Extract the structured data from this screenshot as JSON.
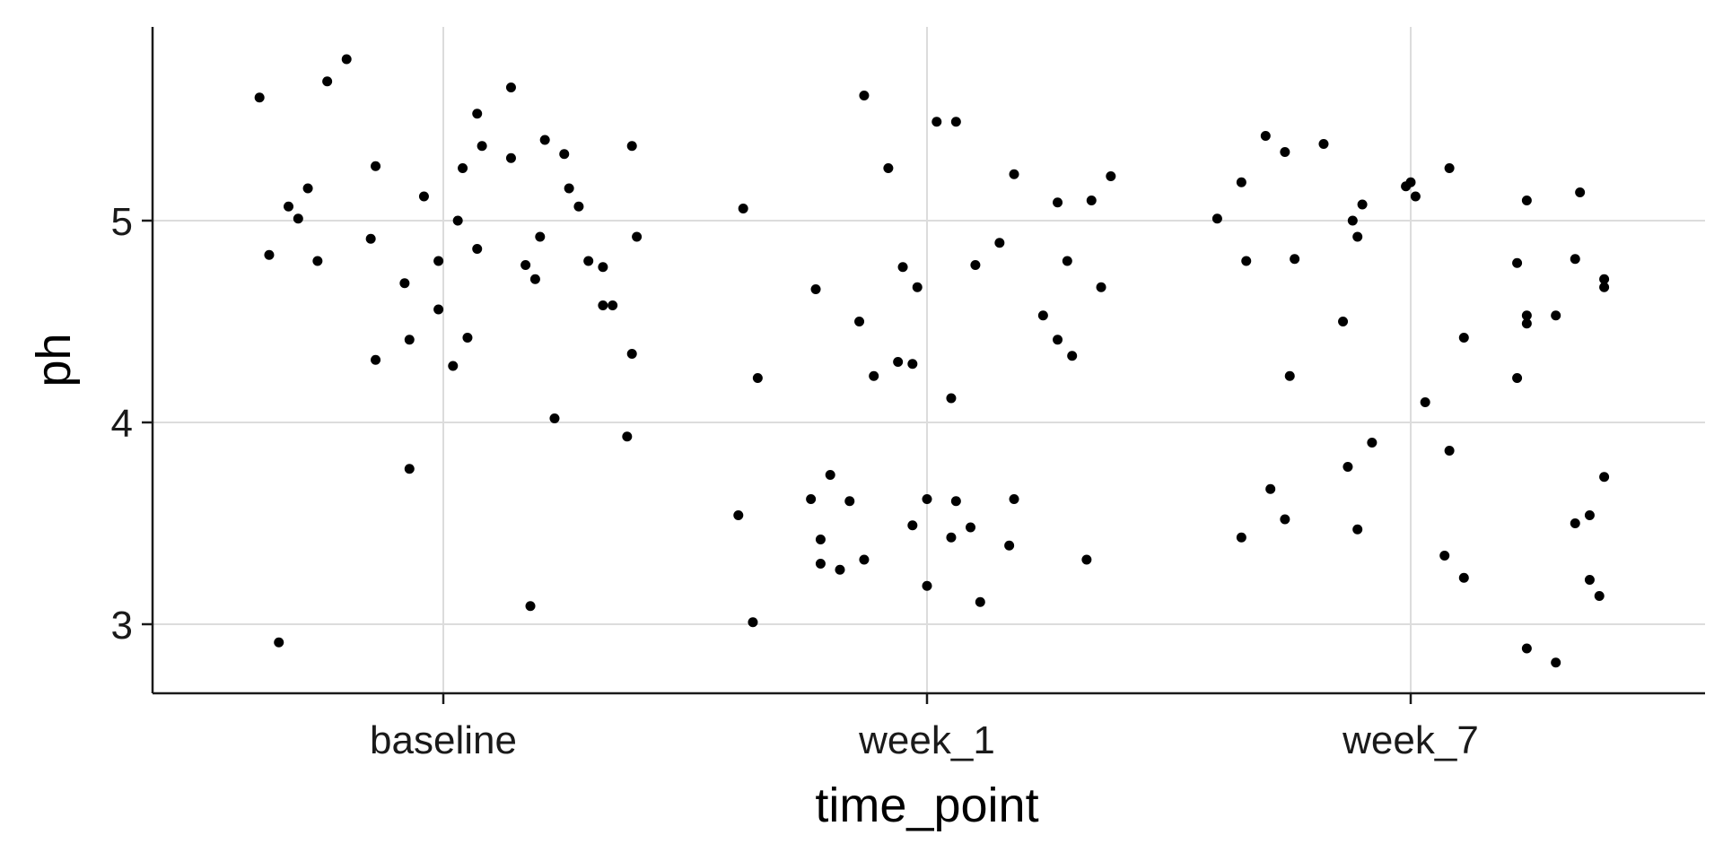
{
  "chart_data": {
    "type": "scatter",
    "title": "",
    "xlabel": "time_point",
    "ylabel": "ph",
    "categories": [
      "baseline",
      "week_1",
      "week_7"
    ],
    "yticks": [
      3,
      4,
      5
    ],
    "ylim": [
      2.66,
      5.95
    ],
    "grid": true,
    "legend": "none",
    "colors": {
      "point": "#000000",
      "grid": "#dcdcdc",
      "axis": "#1a1a1a",
      "background": "#ffffff"
    },
    "series": [
      {
        "category": "baseline",
        "points": [
          {
            "x": -0.38,
            "y": 5.61
          },
          {
            "x": -0.36,
            "y": 4.83
          },
          {
            "x": -0.34,
            "y": 2.91
          },
          {
            "x": -0.32,
            "y": 5.07
          },
          {
            "x": -0.3,
            "y": 5.01
          },
          {
            "x": -0.28,
            "y": 5.16
          },
          {
            "x": -0.26,
            "y": 4.8
          },
          {
            "x": -0.24,
            "y": 5.69
          },
          {
            "x": -0.2,
            "y": 5.8
          },
          {
            "x": -0.15,
            "y": 4.91
          },
          {
            "x": -0.14,
            "y": 4.31
          },
          {
            "x": -0.14,
            "y": 5.27
          },
          {
            "x": -0.08,
            "y": 4.69
          },
          {
            "x": -0.07,
            "y": 4.41
          },
          {
            "x": -0.07,
            "y": 3.77
          },
          {
            "x": -0.04,
            "y": 5.12
          },
          {
            "x": -0.01,
            "y": 4.8
          },
          {
            "x": -0.01,
            "y": 4.56
          },
          {
            "x": 0.02,
            "y": 4.28
          },
          {
            "x": 0.03,
            "y": 5.0
          },
          {
            "x": 0.04,
            "y": 5.26
          },
          {
            "x": 0.05,
            "y": 4.42
          },
          {
            "x": 0.07,
            "y": 4.86
          },
          {
            "x": 0.07,
            "y": 5.53
          },
          {
            "x": 0.08,
            "y": 5.37
          },
          {
            "x": 0.14,
            "y": 5.31
          },
          {
            "x": 0.14,
            "y": 5.66
          },
          {
            "x": 0.17,
            "y": 4.78
          },
          {
            "x": 0.18,
            "y": 3.09
          },
          {
            "x": 0.19,
            "y": 4.71
          },
          {
            "x": 0.2,
            "y": 4.92
          },
          {
            "x": 0.21,
            "y": 5.4
          },
          {
            "x": 0.23,
            "y": 4.02
          },
          {
            "x": 0.25,
            "y": 5.33
          },
          {
            "x": 0.26,
            "y": 5.16
          },
          {
            "x": 0.28,
            "y": 5.07
          },
          {
            "x": 0.3,
            "y": 4.8
          },
          {
            "x": 0.33,
            "y": 4.77
          },
          {
            "x": 0.33,
            "y": 4.58
          },
          {
            "x": 0.35,
            "y": 4.58
          },
          {
            "x": 0.38,
            "y": 3.93
          },
          {
            "x": 0.39,
            "y": 4.34
          },
          {
            "x": 0.39,
            "y": 5.37
          },
          {
            "x": 0.4,
            "y": 4.92
          }
        ]
      },
      {
        "category": "week_1",
        "points": [
          {
            "x": -0.39,
            "y": 3.54
          },
          {
            "x": -0.38,
            "y": 5.06
          },
          {
            "x": -0.36,
            "y": 3.01
          },
          {
            "x": -0.35,
            "y": 4.22
          },
          {
            "x": -0.24,
            "y": 3.62
          },
          {
            "x": -0.23,
            "y": 4.66
          },
          {
            "x": -0.22,
            "y": 3.42
          },
          {
            "x": -0.22,
            "y": 3.3
          },
          {
            "x": -0.2,
            "y": 3.74
          },
          {
            "x": -0.18,
            "y": 3.27
          },
          {
            "x": -0.16,
            "y": 3.61
          },
          {
            "x": -0.14,
            "y": 4.5
          },
          {
            "x": -0.13,
            "y": 3.32
          },
          {
            "x": -0.13,
            "y": 5.62
          },
          {
            "x": -0.11,
            "y": 4.23
          },
          {
            "x": -0.08,
            "y": 5.26
          },
          {
            "x": -0.06,
            "y": 4.3
          },
          {
            "x": -0.05,
            "y": 4.77
          },
          {
            "x": -0.03,
            "y": 4.29
          },
          {
            "x": -0.03,
            "y": 3.49
          },
          {
            "x": -0.02,
            "y": 4.67
          },
          {
            "x": 0.0,
            "y": 3.19
          },
          {
            "x": 0.0,
            "y": 3.62
          },
          {
            "x": 0.02,
            "y": 5.49
          },
          {
            "x": 0.05,
            "y": 4.12
          },
          {
            "x": 0.05,
            "y": 3.43
          },
          {
            "x": 0.06,
            "y": 3.61
          },
          {
            "x": 0.06,
            "y": 5.49
          },
          {
            "x": 0.09,
            "y": 3.48
          },
          {
            "x": 0.1,
            "y": 4.78
          },
          {
            "x": 0.11,
            "y": 3.11
          },
          {
            "x": 0.15,
            "y": 4.89
          },
          {
            "x": 0.17,
            "y": 3.39
          },
          {
            "x": 0.18,
            "y": 5.23
          },
          {
            "x": 0.18,
            "y": 3.62
          },
          {
            "x": 0.24,
            "y": 4.53
          },
          {
            "x": 0.27,
            "y": 4.41
          },
          {
            "x": 0.27,
            "y": 5.09
          },
          {
            "x": 0.29,
            "y": 4.8
          },
          {
            "x": 0.3,
            "y": 4.33
          },
          {
            "x": 0.33,
            "y": 3.32
          },
          {
            "x": 0.34,
            "y": 5.1
          },
          {
            "x": 0.36,
            "y": 4.67
          },
          {
            "x": 0.38,
            "y": 5.22
          }
        ]
      },
      {
        "category": "week_7",
        "points": [
          {
            "x": -0.4,
            "y": 5.01
          },
          {
            "x": -0.35,
            "y": 5.19
          },
          {
            "x": -0.35,
            "y": 3.43
          },
          {
            "x": -0.34,
            "y": 4.8
          },
          {
            "x": -0.3,
            "y": 5.42
          },
          {
            "x": -0.29,
            "y": 3.67
          },
          {
            "x": -0.26,
            "y": 5.34
          },
          {
            "x": -0.26,
            "y": 3.52
          },
          {
            "x": -0.25,
            "y": 4.23
          },
          {
            "x": -0.24,
            "y": 4.81
          },
          {
            "x": -0.18,
            "y": 5.38
          },
          {
            "x": -0.14,
            "y": 4.5
          },
          {
            "x": -0.13,
            "y": 3.78
          },
          {
            "x": -0.12,
            "y": 5.0
          },
          {
            "x": -0.11,
            "y": 3.47
          },
          {
            "x": -0.11,
            "y": 4.92
          },
          {
            "x": -0.1,
            "y": 5.08
          },
          {
            "x": -0.08,
            "y": 3.9
          },
          {
            "x": -0.01,
            "y": 5.17
          },
          {
            "x": 0.0,
            "y": 5.19
          },
          {
            "x": 0.01,
            "y": 5.12
          },
          {
            "x": 0.03,
            "y": 4.1
          },
          {
            "x": 0.07,
            "y": 3.34
          },
          {
            "x": 0.08,
            "y": 5.26
          },
          {
            "x": 0.08,
            "y": 3.86
          },
          {
            "x": 0.11,
            "y": 3.23
          },
          {
            "x": 0.11,
            "y": 4.42
          },
          {
            "x": 0.22,
            "y": 4.79
          },
          {
            "x": 0.22,
            "y": 4.22
          },
          {
            "x": 0.24,
            "y": 2.88
          },
          {
            "x": 0.24,
            "y": 5.1
          },
          {
            "x": 0.24,
            "y": 4.53
          },
          {
            "x": 0.24,
            "y": 4.49
          },
          {
            "x": 0.3,
            "y": 4.53
          },
          {
            "x": 0.3,
            "y": 2.81
          },
          {
            "x": 0.34,
            "y": 4.81
          },
          {
            "x": 0.34,
            "y": 3.5
          },
          {
            "x": 0.35,
            "y": 5.14
          },
          {
            "x": 0.37,
            "y": 3.54
          },
          {
            "x": 0.37,
            "y": 3.22
          },
          {
            "x": 0.39,
            "y": 3.14
          },
          {
            "x": 0.4,
            "y": 3.73
          },
          {
            "x": 0.4,
            "y": 4.71
          },
          {
            "x": 0.4,
            "y": 4.67
          }
        ]
      }
    ]
  }
}
